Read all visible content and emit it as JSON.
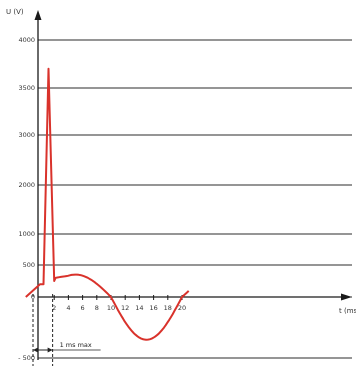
{
  "chart_data": {
    "type": "line",
    "title": "",
    "ylabel": "U (V)",
    "xlabel": "t (ms)",
    "y_ticks": [
      -500,
      0,
      500,
      1000,
      2000,
      3000,
      3500,
      4000
    ],
    "y_tick_labels": [
      "- 500",
      "0",
      "500",
      "1000",
      "2000",
      "3000",
      "3500",
      "4000"
    ],
    "x_ticks": [
      2,
      4,
      6,
      8,
      10,
      12,
      14,
      16,
      18,
      20
    ],
    "x_tick_labels": [
      "2",
      "4",
      "6",
      "8",
      "10",
      "12",
      "14",
      "16",
      "18",
      "20"
    ],
    "xlim": [
      -2,
      22
    ],
    "grid": true,
    "series": [
      {
        "color": "#d9322b",
        "x": [
          -2,
          0,
          0.5,
          1.2,
          2.0,
          2.2,
          5,
          10,
          15,
          20,
          21
        ],
        "y": [
          0,
          200,
          200,
          3700,
          250,
          300,
          350,
          0,
          -350,
          0,
          100
        ]
      }
    ],
    "annotation": {
      "label": "1 ms max",
      "x_start": 0,
      "x_end": 2.2
    },
    "colors": {
      "curve": "#d9322b",
      "grid": "#2b2b2b",
      "axis": "#1a1a1a"
    }
  }
}
